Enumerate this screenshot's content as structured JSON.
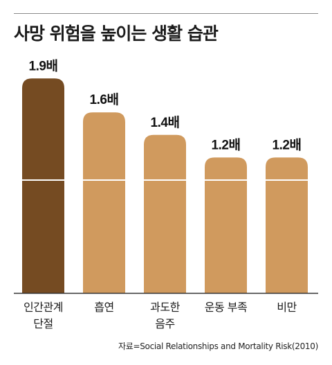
{
  "title": "사망 위험을 높이는 생활 습관",
  "source": "자료=Social Relationships and Mortality Risk(2010)",
  "colors": {
    "highlight": "#754b22",
    "bar": "#d09a5e",
    "axis": "#333333",
    "gridline": "#ffffff"
  },
  "chart_data": {
    "type": "bar",
    "title": "사망 위험을 높이는 생활 습관",
    "categories": [
      [
        "인간관계",
        "단절"
      ],
      [
        "흡연"
      ],
      [
        "과도한",
        "음주"
      ],
      [
        "운동 부족"
      ],
      [
        "비만"
      ]
    ],
    "values": [
      1.9,
      1.6,
      1.4,
      1.2,
      1.2
    ],
    "value_labels": [
      "1.9배",
      "1.6배",
      "1.4배",
      "1.2배",
      "1.2배"
    ],
    "highlight_index": 0,
    "ylim": [
      0,
      2.0
    ],
    "reference_line": 1.0,
    "xlabel": "",
    "ylabel": ""
  }
}
